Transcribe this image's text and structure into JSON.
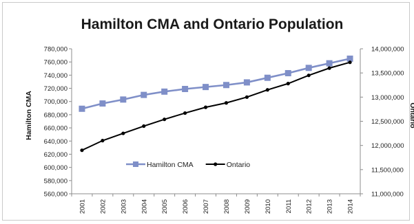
{
  "chart_data": {
    "type": "line",
    "title": "Hamilton CMA and Ontario Population",
    "xlabel": "",
    "ylabel": "Hamilton CMA",
    "y2label": "Ontario",
    "categories": [
      "2001",
      "2002",
      "2003",
      "2004",
      "2005",
      "2006",
      "2007",
      "2008",
      "2009",
      "2010",
      "2011",
      "2012",
      "2013",
      "2014"
    ],
    "ylim": [
      560000,
      780000
    ],
    "y2lim": [
      11000000,
      14000000
    ],
    "yticks": [
      "560,000",
      "580,000",
      "600,000",
      "620,000",
      "640,000",
      "660,000",
      "680,000",
      "700,000",
      "720,000",
      "740,000",
      "760,000",
      "780,000"
    ],
    "y2ticks": [
      "11,000,000",
      "11,500,000",
      "12,000,000",
      "12,500,000",
      "13,000,000",
      "13,500,000",
      "14,000,000"
    ],
    "grid": false,
    "legend_position": "center",
    "series": [
      {
        "name": "Hamilton CMA",
        "axis": "left",
        "color": "#7f8fc8",
        "marker": "square",
        "values": [
          689000,
          697000,
          703000,
          710000,
          715000,
          719000,
          722000,
          725000,
          729000,
          736000,
          743000,
          751000,
          758000,
          765000
        ]
      },
      {
        "name": "Ontario",
        "axis": "right",
        "color": "#000000",
        "marker": "circle",
        "values": [
          11900000,
          12100000,
          12250000,
          12400000,
          12540000,
          12670000,
          12790000,
          12880000,
          13000000,
          13150000,
          13280000,
          13450000,
          13600000,
          13720000
        ]
      }
    ]
  }
}
